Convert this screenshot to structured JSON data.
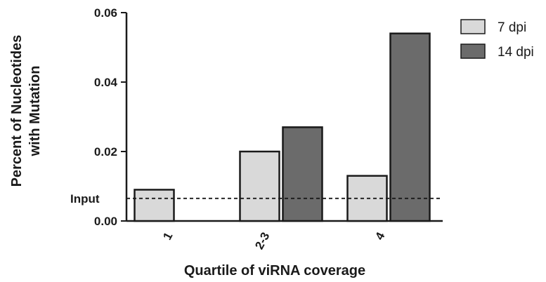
{
  "chart_data": {
    "type": "bar",
    "categories": [
      "1",
      "2-3",
      "4"
    ],
    "series": [
      {
        "name": "7 dpi",
        "values": [
          0.009,
          0.02,
          0.013
        ],
        "color": "#d9d9d9"
      },
      {
        "name": "14 dpi",
        "values": [
          null,
          0.027,
          0.054
        ],
        "color": "#6b6b6b"
      }
    ],
    "ylabel_lines": [
      "Percent of Nucleotides",
      "with Mutation"
    ],
    "xlabel": "Quartile of viRNA coverage",
    "ylim": [
      0,
      0.06
    ],
    "yticks": [
      "0.00",
      "0.02",
      "0.04",
      "0.06"
    ],
    "reference_line": {
      "label": "Input",
      "value": 0.0065,
      "style": "dashed"
    },
    "legend_position": "top-right",
    "grid": false
  }
}
